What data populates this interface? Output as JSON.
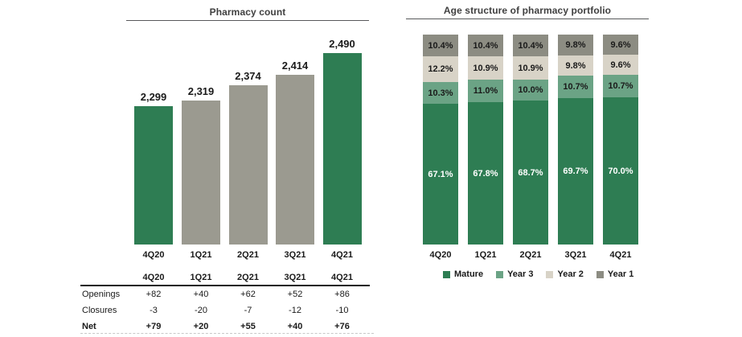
{
  "colors": {
    "dark_green": "#2E7D53",
    "sage_green": "#6BA385",
    "beige": "#D8D3C7",
    "dark_gray": "#8C8C82",
    "bar_gray": "#9B9A90",
    "title_text": "#404040",
    "body_text": "#1A1A1A",
    "rule": "#58595B"
  },
  "left_chart": {
    "title": "Pharmacy count"
  },
  "right_chart": {
    "title": "Age structure of pharmacy portfolio"
  },
  "chart_data": [
    {
      "type": "bar",
      "title": "Pharmacy count",
      "categories": [
        "4Q20",
        "1Q21",
        "2Q21",
        "3Q21",
        "4Q21"
      ],
      "values": [
        2299,
        2319,
        2374,
        2414,
        2490
      ],
      "value_labels": [
        "2,299",
        "2,319",
        "2,374",
        "2,414",
        "2,490"
      ],
      "bar_colors": [
        "#2E7D53",
        "#9B9A90",
        "#9B9A90",
        "#9B9A90",
        "#2E7D53"
      ],
      "ylim": [
        1800,
        2500
      ],
      "grid": false,
      "legend_position": "none"
    },
    {
      "type": "bar",
      "subtype": "stacked-100pct",
      "title": "Age structure of pharmacy portfolio",
      "categories": [
        "4Q20",
        "1Q21",
        "2Q21",
        "3Q21",
        "4Q21"
      ],
      "series": [
        {
          "name": "Mature",
          "color": "#2E7D53",
          "label_color": "#FFFFFF",
          "values": [
            67.1,
            67.8,
            68.7,
            69.7,
            70.0
          ],
          "labels": [
            "67.1%",
            "67.8%",
            "68.7%",
            "69.7%",
            "70.0%"
          ]
        },
        {
          "name": "Year 3",
          "color": "#6BA385",
          "label_color": "#1A1A1A",
          "values": [
            10.3,
            11.0,
            10.0,
            10.7,
            10.7
          ],
          "labels": [
            "10.3%",
            "11.0%",
            "10.0%",
            "10.7%",
            "10.7%"
          ]
        },
        {
          "name": "Year 2",
          "color": "#D8D3C7",
          "label_color": "#1A1A1A",
          "values": [
            12.2,
            10.9,
            10.9,
            9.8,
            9.6
          ],
          "labels": [
            "12.2%",
            "10.9%",
            "10.9%",
            "9.8%",
            "9.6%"
          ]
        },
        {
          "name": "Year 1",
          "color": "#8C8C82",
          "label_color": "#1A1A1A",
          "values": [
            10.4,
            10.4,
            10.4,
            9.8,
            9.6
          ],
          "labels": [
            "10.4%",
            "10.4%",
            "10.4%",
            "9.8%",
            "9.6%"
          ]
        }
      ],
      "stack_order_top_to_bottom": [
        "Year 1",
        "Year 2",
        "Year 3",
        "Mature"
      ],
      "legend_order": [
        "Mature",
        "Year 3",
        "Year 2",
        "Year 1"
      ],
      "legend_position": "bottom",
      "grid": false
    },
    {
      "type": "table",
      "header": [
        "4Q20",
        "1Q21",
        "2Q21",
        "3Q21",
        "4Q21"
      ],
      "rows": [
        {
          "label": "Openings",
          "values": [
            "+82",
            "+40",
            "+62",
            "+52",
            "+86"
          ],
          "bold": false
        },
        {
          "label": "Closures",
          "values": [
            "-3",
            "-20",
            "-7",
            "-12",
            "-10"
          ],
          "bold": false
        },
        {
          "label": "Net",
          "values": [
            "+79",
            "+20",
            "+55",
            "+40",
            "+76"
          ],
          "bold": true
        }
      ]
    }
  ]
}
